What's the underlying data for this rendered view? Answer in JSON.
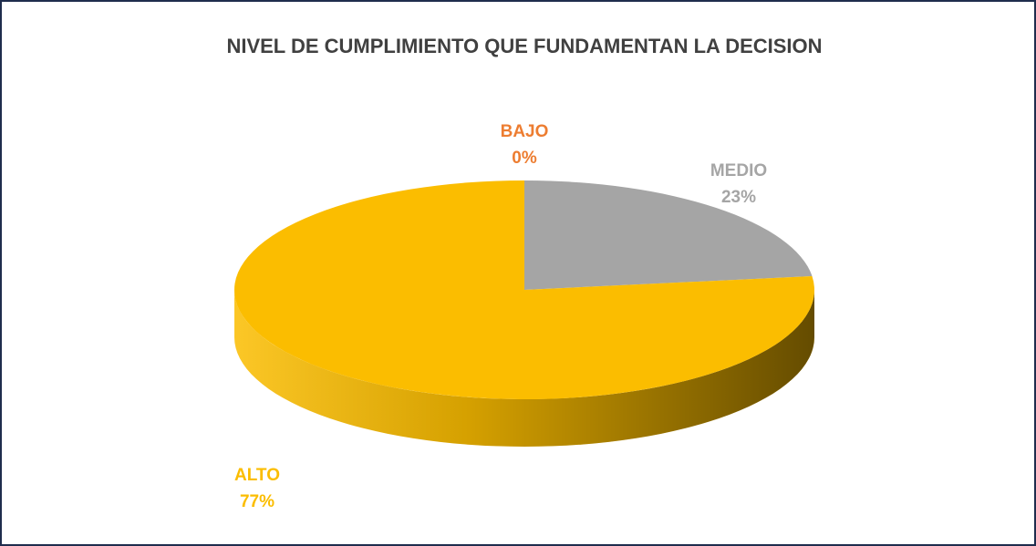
{
  "chart_data": {
    "type": "pie",
    "title": "NIVEL DE CUMPLIMIENTO QUE FUNDAMENTAN LA DECISION",
    "categories": [
      "BAJO",
      "MEDIO",
      "ALTO"
    ],
    "values": [
      0,
      23,
      77
    ],
    "value_labels": [
      "0%",
      "23%",
      "77%"
    ],
    "colors": [
      "#ed7d31",
      "#a5a5a5",
      "#fbbd00"
    ]
  }
}
